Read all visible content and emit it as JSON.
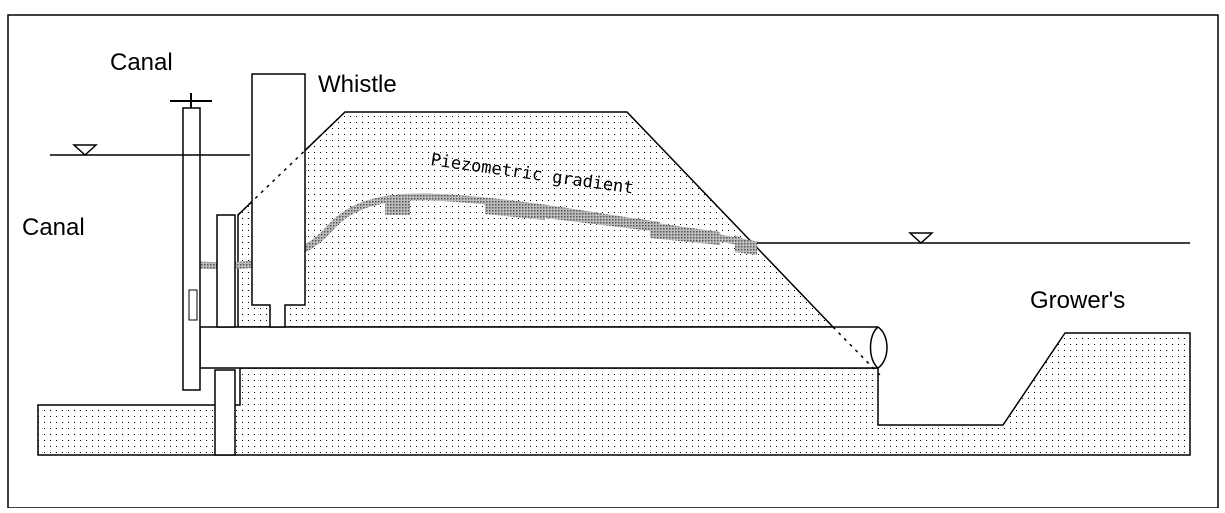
{
  "labels": {
    "canal_top": "Canal",
    "whistle": "Whistle",
    "canal_left": "Canal",
    "piezometric": "Piezometric gradient",
    "growers": "Grower's"
  }
}
